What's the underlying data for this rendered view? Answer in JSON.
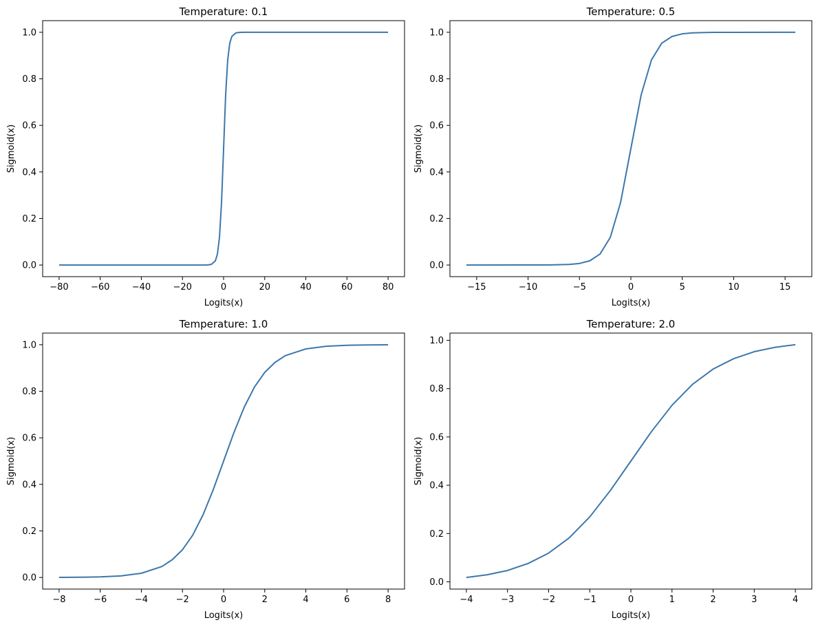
{
  "chart_data": [
    {
      "type": "line",
      "title": "Temperature: 0.1",
      "xlabel": "Logits(x)",
      "ylabel": "Sigmoid(x)",
      "xlim": [
        -88,
        88
      ],
      "ylim": [
        -0.05,
        1.05
      ],
      "xticks": [
        -80,
        -60,
        -40,
        -20,
        0,
        20,
        40,
        60,
        80
      ],
      "xtick_labels": [
        "−80",
        "−60",
        "−40",
        "−20",
        "0",
        "20",
        "40",
        "60",
        "80"
      ],
      "yticks": [
        0.0,
        0.2,
        0.4,
        0.6,
        0.8,
        1.0
      ],
      "ytick_labels": [
        "0.0",
        "0.2",
        "0.4",
        "0.6",
        "0.8",
        "1.0"
      ],
      "grid": false,
      "series": [
        {
          "color": "#3b77ab",
          "x": [
            -80,
            -20,
            -10,
            -8,
            -6,
            -4,
            -3,
            -2,
            -1,
            0,
            1,
            2,
            3,
            4,
            6,
            8,
            10,
            20,
            80
          ],
          "y": [
            0.0,
            0.0,
            0.0,
            0.0003,
            0.0025,
            0.018,
            0.047,
            0.119,
            0.269,
            0.5,
            0.731,
            0.881,
            0.953,
            0.982,
            0.9975,
            0.9997,
            1.0,
            1.0,
            1.0
          ]
        }
      ]
    },
    {
      "type": "line",
      "title": "Temperature: 0.5",
      "xlabel": "Logits(x)",
      "ylabel": "Sigmoid(x)",
      "xlim": [
        -17.6,
        17.6
      ],
      "ylim": [
        -0.05,
        1.05
      ],
      "xticks": [
        -15,
        -10,
        -5,
        0,
        5,
        10,
        15
      ],
      "xtick_labels": [
        "−15",
        "−10",
        "−5",
        "0",
        "5",
        "10",
        "15"
      ],
      "yticks": [
        0.0,
        0.2,
        0.4,
        0.6,
        0.8,
        1.0
      ],
      "ytick_labels": [
        "0.0",
        "0.2",
        "0.4",
        "0.6",
        "0.8",
        "1.0"
      ],
      "grid": false,
      "series": [
        {
          "color": "#3b77ab",
          "x": [
            -16,
            -10,
            -8,
            -6,
            -5,
            -4,
            -3,
            -2,
            -1,
            0,
            1,
            2,
            3,
            4,
            5,
            6,
            8,
            10,
            16
          ],
          "y": [
            0.0,
            0.0002,
            0.0003,
            0.0025,
            0.0067,
            0.018,
            0.047,
            0.119,
            0.269,
            0.5,
            0.731,
            0.881,
            0.953,
            0.982,
            0.9933,
            0.9975,
            0.9997,
            0.9998,
            1.0
          ]
        }
      ]
    },
    {
      "type": "line",
      "title": "Temperature: 1.0",
      "xlabel": "Logits(x)",
      "ylabel": "Sigmoid(x)",
      "xlim": [
        -8.8,
        8.8
      ],
      "ylim": [
        -0.05,
        1.05
      ],
      "xticks": [
        -8,
        -6,
        -4,
        -2,
        0,
        2,
        4,
        6,
        8
      ],
      "xtick_labels": [
        "−8",
        "−6",
        "−4",
        "−2",
        "0",
        "2",
        "4",
        "6",
        "8"
      ],
      "yticks": [
        0.0,
        0.2,
        0.4,
        0.6,
        0.8,
        1.0
      ],
      "ytick_labels": [
        "0.0",
        "0.2",
        "0.4",
        "0.6",
        "0.8",
        "1.0"
      ],
      "grid": false,
      "series": [
        {
          "color": "#3b77ab",
          "x": [
            -8,
            -7,
            -6,
            -5,
            -4,
            -3,
            -2.5,
            -2,
            -1.5,
            -1,
            -0.5,
            0,
            0.5,
            1,
            1.5,
            2,
            2.5,
            3,
            4,
            5,
            6,
            7,
            8
          ],
          "y": [
            0.0003,
            0.0009,
            0.0025,
            0.0067,
            0.018,
            0.047,
            0.076,
            0.119,
            0.182,
            0.269,
            0.378,
            0.5,
            0.622,
            0.731,
            0.818,
            0.881,
            0.924,
            0.953,
            0.982,
            0.9933,
            0.9975,
            0.9991,
            0.9997
          ]
        }
      ]
    },
    {
      "type": "line",
      "title": "Temperature: 2.0",
      "xlabel": "Logits(x)",
      "ylabel": "Sigmoid(x)",
      "xlim": [
        -4.4,
        4.4
      ],
      "ylim": [
        -0.03,
        1.03
      ],
      "xticks": [
        -4,
        -3,
        -2,
        -1,
        0,
        1,
        2,
        3,
        4
      ],
      "xtick_labels": [
        "−4",
        "−3",
        "−2",
        "−1",
        "0",
        "1",
        "2",
        "3",
        "4"
      ],
      "yticks": [
        0.0,
        0.2,
        0.4,
        0.6,
        0.8,
        1.0
      ],
      "ytick_labels": [
        "0.0",
        "0.2",
        "0.4",
        "0.6",
        "0.8",
        "1.0"
      ],
      "grid": false,
      "series": [
        {
          "color": "#3b77ab",
          "x": [
            -4,
            -3.5,
            -3,
            -2.5,
            -2,
            -1.5,
            -1,
            -0.5,
            0,
            0.5,
            1,
            1.5,
            2,
            2.5,
            3,
            3.5,
            4
          ],
          "y": [
            0.018,
            0.029,
            0.047,
            0.076,
            0.119,
            0.182,
            0.269,
            0.378,
            0.5,
            0.622,
            0.731,
            0.818,
            0.881,
            0.924,
            0.953,
            0.971,
            0.982
          ]
        }
      ]
    }
  ]
}
